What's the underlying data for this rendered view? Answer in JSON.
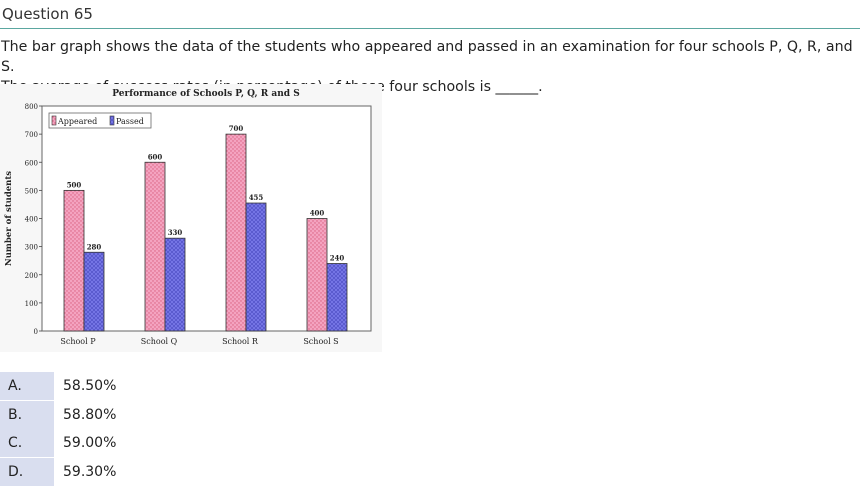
{
  "question": {
    "number_label": "Question 65",
    "line1": "The bar graph shows the data of the students who appeared and passed in an examination for four schools P, Q, R, and S.",
    "line2": "The average of success rates (in percentage) of these four schools is ______."
  },
  "chart_data": {
    "type": "bar",
    "title": "Performance of Schools P, Q, R and S",
    "xlabel": "",
    "ylabel": "Number of students",
    "categories": [
      "School P",
      "School Q",
      "School R",
      "School S"
    ],
    "series": [
      {
        "name": "Appeared",
        "values": [
          500,
          600,
          700,
          400
        ],
        "color": "#f4a3c0",
        "pattern": "dotted-pink"
      },
      {
        "name": "Passed",
        "values": [
          280,
          330,
          455,
          240
        ],
        "color": "#7878e8",
        "pattern": "crosshatch-blue"
      }
    ],
    "ylim": [
      0,
      800
    ],
    "yticks": [
      0,
      100,
      200,
      300,
      400,
      500,
      600,
      700,
      800
    ],
    "data_labels": true,
    "legend_position": "top-left",
    "grid": false
  },
  "options": [
    {
      "letter": "A.",
      "text": "58.50%"
    },
    {
      "letter": "B.",
      "text": "58.80%"
    },
    {
      "letter": "C.",
      "text": "59.00%"
    },
    {
      "letter": "D.",
      "text": "59.30%"
    }
  ]
}
